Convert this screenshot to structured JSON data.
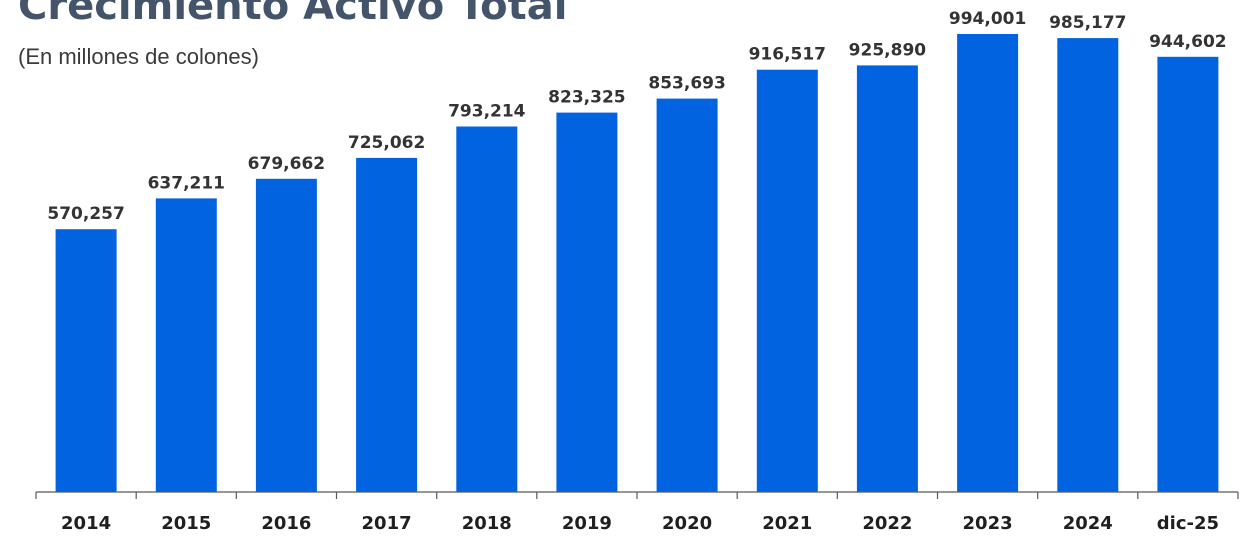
{
  "chart_data": {
    "type": "bar",
    "title": "Crecimiento Activo Total",
    "subtitle": "(En millones de colones)",
    "xlabel": "",
    "ylabel": "",
    "categories": [
      "2014",
      "2015",
      "2016",
      "2017",
      "2018",
      "2019",
      "2020",
      "2021",
      "2022",
      "2023",
      "2024",
      "dic-25"
    ],
    "values": [
      570257,
      637211,
      679662,
      725062,
      793214,
      823325,
      853693,
      916517,
      925890,
      994001,
      985177,
      944602
    ],
    "data_labels": [
      "570,257",
      "637,211",
      "679,662",
      "725,062",
      "793,214",
      "823,325",
      "853,693",
      "916,517",
      "925,890",
      "994,001",
      "985,177",
      "944,602"
    ],
    "ylim": [
      0,
      1000000
    ],
    "grid": false,
    "legend": "none",
    "colors": {
      "bar": "#0263e0",
      "title": "#44546a",
      "text": "#333333"
    }
  }
}
